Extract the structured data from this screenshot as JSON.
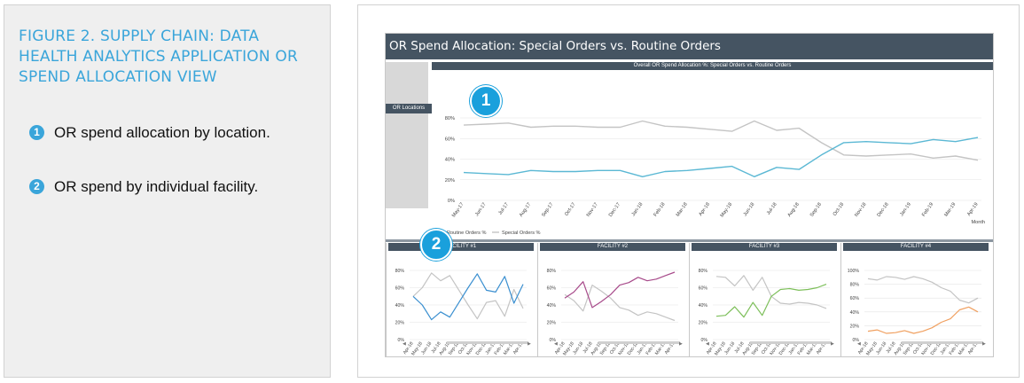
{
  "caption": {
    "title": "FIGURE 2. SUPPLY CHAIN: DATA HEALTH ANALYTICS APPLICATION OR SPEND ALLOCATION VIEW",
    "items": [
      {
        "num": "1",
        "text": "OR spend allocation by location."
      },
      {
        "num": "2",
        "text": "OR spend by individual facility."
      }
    ]
  },
  "colors": {
    "accent": "#3aa5da",
    "header": "#455462",
    "routine": "#5bb8d4",
    "special": "#c4c4c4",
    "facility_routine": [
      "#3a8fd0",
      "#a74a8a",
      "#7dbf5a",
      "#f0a060"
    ]
  },
  "dashboard": {
    "title": "OR Spend Allocation: Special Orders vs. Routine Orders",
    "side_button": "OR Locations",
    "main_strip": "Overall OR Spend Allocation %: Special Orders vs. Routine Orders",
    "badges": [
      "1",
      "2"
    ]
  },
  "chart_data": [
    {
      "type": "line",
      "title": "Overall OR Spend Allocation %: Special Orders vs. Routine Orders",
      "xlabel": "Month",
      "ylabel": "",
      "ylim": [
        0,
        80
      ],
      "yticks": [
        "0%",
        "20%",
        "40%",
        "60%",
        "80%"
      ],
      "categories": [
        "May-17",
        "Jun-17",
        "Jul-17",
        "Aug-17",
        "Sep-17",
        "Oct-17",
        "Nov-17",
        "Dec-17",
        "Jan-18",
        "Feb-18",
        "Mar-18",
        "Apr-18",
        "May-18",
        "Jun-18",
        "Jul-18",
        "Aug-18",
        "Sep-18",
        "Oct-18",
        "Nov-18",
        "Dec-18",
        "Jan-19",
        "Feb-19",
        "Mar-19",
        "Apr-19"
      ],
      "series": [
        {
          "name": "Routine Orders %",
          "values": [
            27,
            26,
            25,
            29,
            28,
            28,
            29,
            29,
            23,
            28,
            29,
            31,
            33,
            23,
            32,
            30,
            44,
            56,
            57,
            56,
            55,
            59,
            57,
            61
          ]
        },
        {
          "name": "Special Orders %",
          "values": [
            73,
            74,
            75,
            71,
            72,
            72,
            71,
            71,
            77,
            72,
            71,
            69,
            67,
            77,
            68,
            70,
            56,
            44,
            43,
            44,
            45,
            41,
            43,
            39
          ]
        }
      ],
      "legend": "bottom-left",
      "grid": true
    },
    {
      "type": "line",
      "title": "FACILITY #1",
      "xlabel": "Month",
      "ylim": [
        0,
        80
      ],
      "yticks": [
        "0%",
        "20%",
        "40%",
        "60%",
        "80%"
      ],
      "categories": [
        "Apr-18",
        "May-18",
        "Jun-18",
        "Jul-18",
        "Aug-18",
        "Sep-18",
        "Oct-18",
        "Nov-18",
        "Dec-18",
        "Jan-19",
        "Feb-19",
        "Mar-19",
        "Apr-19"
      ],
      "series": [
        {
          "name": "Routine Orders %",
          "values": [
            50,
            40,
            23,
            32,
            26,
            43,
            60,
            76,
            57,
            55,
            73,
            42,
            64
          ]
        },
        {
          "name": "Special Orders %",
          "values": [
            50,
            60,
            77,
            68,
            74,
            57,
            40,
            24,
            43,
            45,
            27,
            58,
            36
          ]
        }
      ],
      "legend": "bottom-left"
    },
    {
      "type": "line",
      "title": "FACILITY #2",
      "xlabel": "Month",
      "ylim": [
        0,
        80
      ],
      "yticks": [
        "0%",
        "20%",
        "40%",
        "60%",
        "80%"
      ],
      "categories": [
        "Apr-18",
        "May-18",
        "Jun-18",
        "Jul-18",
        "Aug-18",
        "Sep-18",
        "Oct-18",
        "Nov-18",
        "Dec-18",
        "Jan-19",
        "Feb-19",
        "Mar-19",
        "Apr-19"
      ],
      "series": [
        {
          "name": "Routine Orders %",
          "values": [
            48,
            55,
            67,
            37,
            44,
            52,
            63,
            66,
            72,
            68,
            70,
            74,
            78
          ]
        },
        {
          "name": "Special Orders %",
          "values": [
            52,
            45,
            33,
            63,
            56,
            48,
            37,
            34,
            28,
            32,
            30,
            26,
            22
          ]
        }
      ],
      "legend": "bottom-left"
    },
    {
      "type": "line",
      "title": "FACILITY #3",
      "xlabel": "Month",
      "ylim": [
        0,
        80
      ],
      "yticks": [
        "0%",
        "20%",
        "40%",
        "60%",
        "80%"
      ],
      "categories": [
        "Apr-18",
        "May-18",
        "Jun-18",
        "Jul-18",
        "Aug-18",
        "Sep-18",
        "Oct-18",
        "Nov-18",
        "Dec-18",
        "Jan-19",
        "Feb-19",
        "Mar-19",
        "Apr-19"
      ],
      "series": [
        {
          "name": "Routine Orders %",
          "values": [
            27,
            28,
            38,
            26,
            43,
            28,
            50,
            58,
            59,
            57,
            58,
            60,
            64
          ]
        },
        {
          "name": "Special Orders %",
          "values": [
            73,
            72,
            62,
            74,
            57,
            72,
            50,
            42,
            41,
            43,
            42,
            40,
            36
          ]
        }
      ],
      "legend": "bottom-left"
    },
    {
      "type": "line",
      "title": "FACILITY #4",
      "xlabel": "Month",
      "ylim": [
        0,
        100
      ],
      "yticks": [
        "0%",
        "20%",
        "40%",
        "60%",
        "80%",
        "100%"
      ],
      "categories": [
        "Apr-18",
        "May-18",
        "Jun-18",
        "Jul-18",
        "Aug-18",
        "Sep-18",
        "Oct-18",
        "Nov-18",
        "Dec-18",
        "Jan-19",
        "Feb-19",
        "Mar-19",
        "Apr-19"
      ],
      "series": [
        {
          "name": "Routine Orders %",
          "values": [
            12,
            14,
            9,
            10,
            13,
            9,
            12,
            17,
            25,
            30,
            43,
            47,
            40
          ]
        },
        {
          "name": "Special Orders %",
          "values": [
            88,
            86,
            91,
            90,
            87,
            91,
            88,
            83,
            75,
            70,
            57,
            53,
            60
          ]
        }
      ],
      "legend": "bottom-left"
    }
  ]
}
